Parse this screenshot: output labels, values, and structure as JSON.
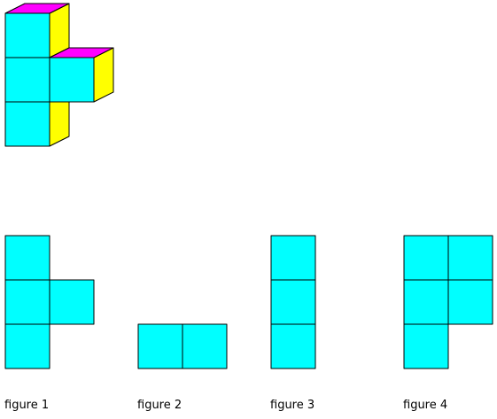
{
  "colors": {
    "front": "#00FFFF",
    "top": "#FF00FF",
    "side": "#FFFF00",
    "outline": "#000000"
  },
  "solid": {
    "description_cubes": [
      {
        "col": 0,
        "row": 0,
        "top_visible": true,
        "side_visible": true
      },
      {
        "col": 0,
        "row": 1,
        "top_visible": false,
        "side_visible": false
      },
      {
        "col": 1,
        "row": 1,
        "top_visible": true,
        "side_visible": true
      },
      {
        "col": 0,
        "row": 2,
        "top_visible": false,
        "side_visible": true
      }
    ]
  },
  "figures": [
    {
      "caption": "figure 1",
      "cells": [
        [
          0,
          0
        ],
        [
          0,
          1
        ],
        [
          1,
          1
        ],
        [
          0,
          2
        ]
      ]
    },
    {
      "caption": "figure 2",
      "cells": [
        [
          0,
          2
        ],
        [
          1,
          2
        ]
      ]
    },
    {
      "caption": "figure 3",
      "cells": [
        [
          0,
          0
        ],
        [
          0,
          1
        ],
        [
          0,
          2
        ]
      ]
    },
    {
      "caption": "figure 4",
      "cells": [
        [
          0,
          0
        ],
        [
          1,
          0
        ],
        [
          0,
          1
        ],
        [
          1,
          1
        ],
        [
          0,
          2
        ]
      ]
    }
  ]
}
